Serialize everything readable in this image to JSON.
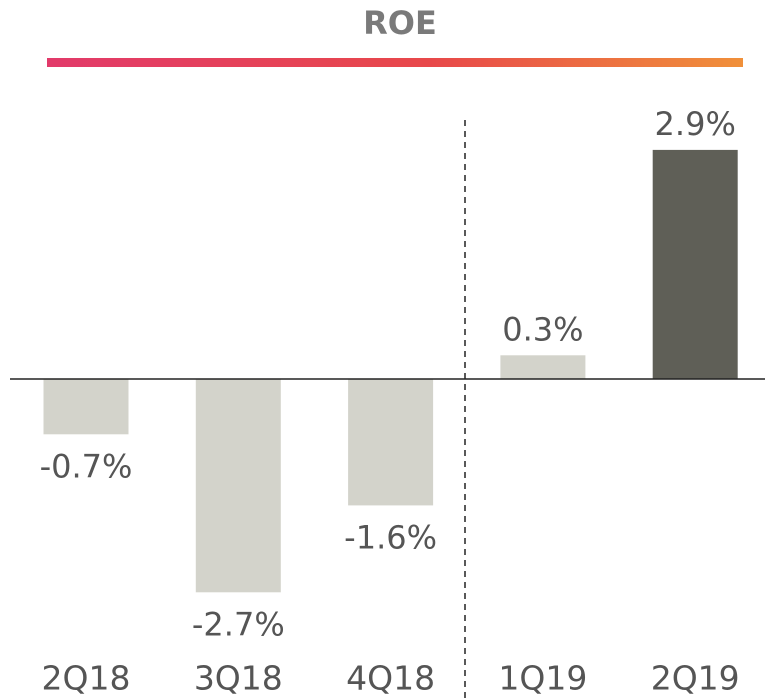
{
  "chart_data": {
    "type": "bar",
    "title": "ROE",
    "categories": [
      "2Q18",
      "3Q18",
      "4Q18",
      "1Q19",
      "2Q19"
    ],
    "values": [
      -0.7,
      -2.7,
      -1.6,
      0.3,
      2.9
    ],
    "value_labels": [
      "-0.7%",
      "-2.7%",
      "-1.6%",
      "0.3%",
      "2.9%"
    ],
    "colors": [
      "#d3d3cb",
      "#d3d3cb",
      "#d3d3cb",
      "#d3d3cb",
      "#5f5f57"
    ]
  }
}
